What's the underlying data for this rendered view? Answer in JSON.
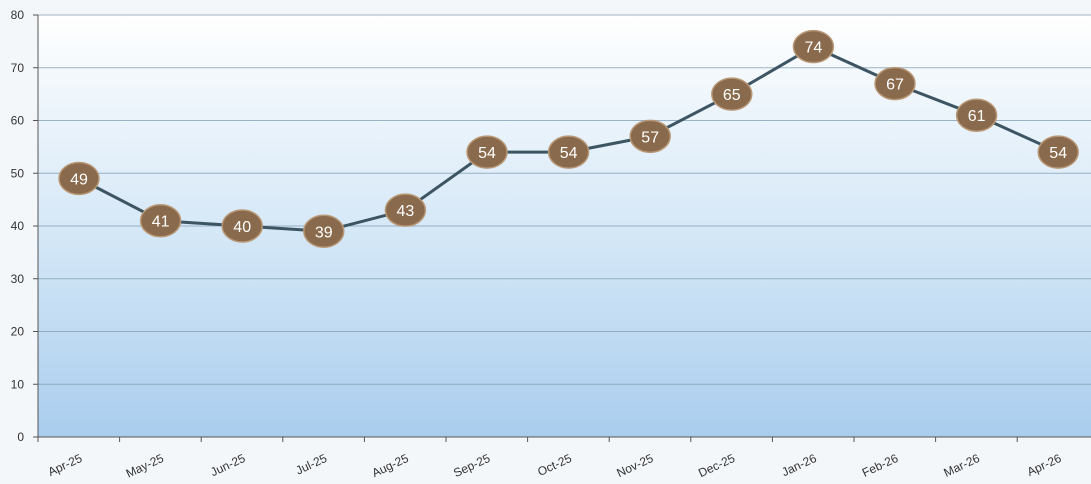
{
  "chart_data": {
    "type": "line",
    "categories": [
      "Apr-25",
      "May-25",
      "Jun-25",
      "Jul-25",
      "Aug-25",
      "Sep-25",
      "Oct-25",
      "Nov-25",
      "Dec-25",
      "Jan-26",
      "Feb-26",
      "Mar-26",
      "Apr-26"
    ],
    "values": [
      49,
      41,
      40,
      39,
      43,
      54,
      54,
      57,
      65,
      74,
      67,
      61,
      54
    ],
    "data_labels": [
      "49",
      "41",
      "40",
      "39",
      "43",
      "54",
      "54",
      "57",
      "65",
      "74",
      "67",
      "61",
      "54"
    ],
    "yticks": [
      0,
      10,
      20,
      30,
      40,
      50,
      60,
      70,
      80
    ],
    "ytick_labels": [
      "0",
      "10",
      "20",
      "30",
      "40",
      "50",
      "60",
      "70",
      "80"
    ],
    "ylim": [
      0,
      80
    ],
    "title": "",
    "xlabel": "",
    "ylabel": "",
    "grid": true,
    "legend": "none",
    "colors": {
      "line": "#3d5563",
      "marker_fill": "#8a6a4c",
      "marker_stroke": "#b89876",
      "marker_text": "#ffffff",
      "gridline": "#7f9db3",
      "axis": "#555555",
      "plot_top": "#ffffff",
      "plot_mid": "#d2e6f6",
      "plot_bottom": "#aacdee"
    }
  }
}
